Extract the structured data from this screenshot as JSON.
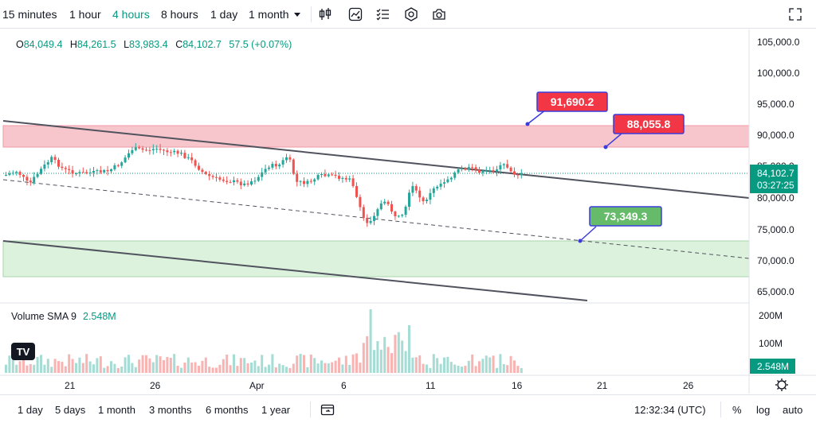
{
  "toolbar": {
    "timeframes": [
      "15 minutes",
      "1 hour",
      "4 hours",
      "8 hours",
      "1 day",
      "1 month"
    ],
    "active_timeframe": "4 hours",
    "icons": [
      "candles-icon",
      "indicators-icon",
      "compare-icon",
      "settings-icon",
      "snapshot-icon",
      "fullscreen-icon"
    ]
  },
  "legend": {
    "open_key": "O",
    "open": "84,049.4",
    "high_key": "H",
    "high": "84,261.5",
    "low_key": "L",
    "low": "83,983.4",
    "close_key": "C",
    "close": "84,102.7",
    "change": "57.5 (+0.07%)"
  },
  "volume": {
    "title": "Volume SMA 9",
    "value": "2.548M",
    "axis_labels": [
      "200M",
      "100M"
    ],
    "badge": "2.548M"
  },
  "price_axis": {
    "labels": [
      "105,000.0",
      "100,000.0",
      "95,000.0",
      "90,000.0",
      "85,000.0",
      "80,000.0",
      "75,000.0",
      "70,000.0",
      "65,000.0"
    ],
    "last_price": "84,102.7",
    "countdown": "03:27:25"
  },
  "annotations": {
    "upper_red": "91,690.2",
    "lower_red": "88,055.8",
    "green": "73,349.3"
  },
  "date_axis": {
    "labels": [
      "21",
      "26",
      "Apr",
      "6",
      "11",
      "16",
      "21",
      "26"
    ]
  },
  "bottom": {
    "ranges": [
      "1 day",
      "5 days",
      "1 month",
      "3 months",
      "6 months",
      "1 year"
    ],
    "time": "12:32:34 (UTC)",
    "percent": "%",
    "log": "log",
    "auto": "auto"
  },
  "colors": {
    "up": "#26a69a",
    "down": "#ef5350",
    "red_zone": "#f7c5cc",
    "green_zone": "#d7f0d8",
    "accent": "#089981",
    "red_label": "#f23645",
    "green_label": "#66bb6a"
  }
}
